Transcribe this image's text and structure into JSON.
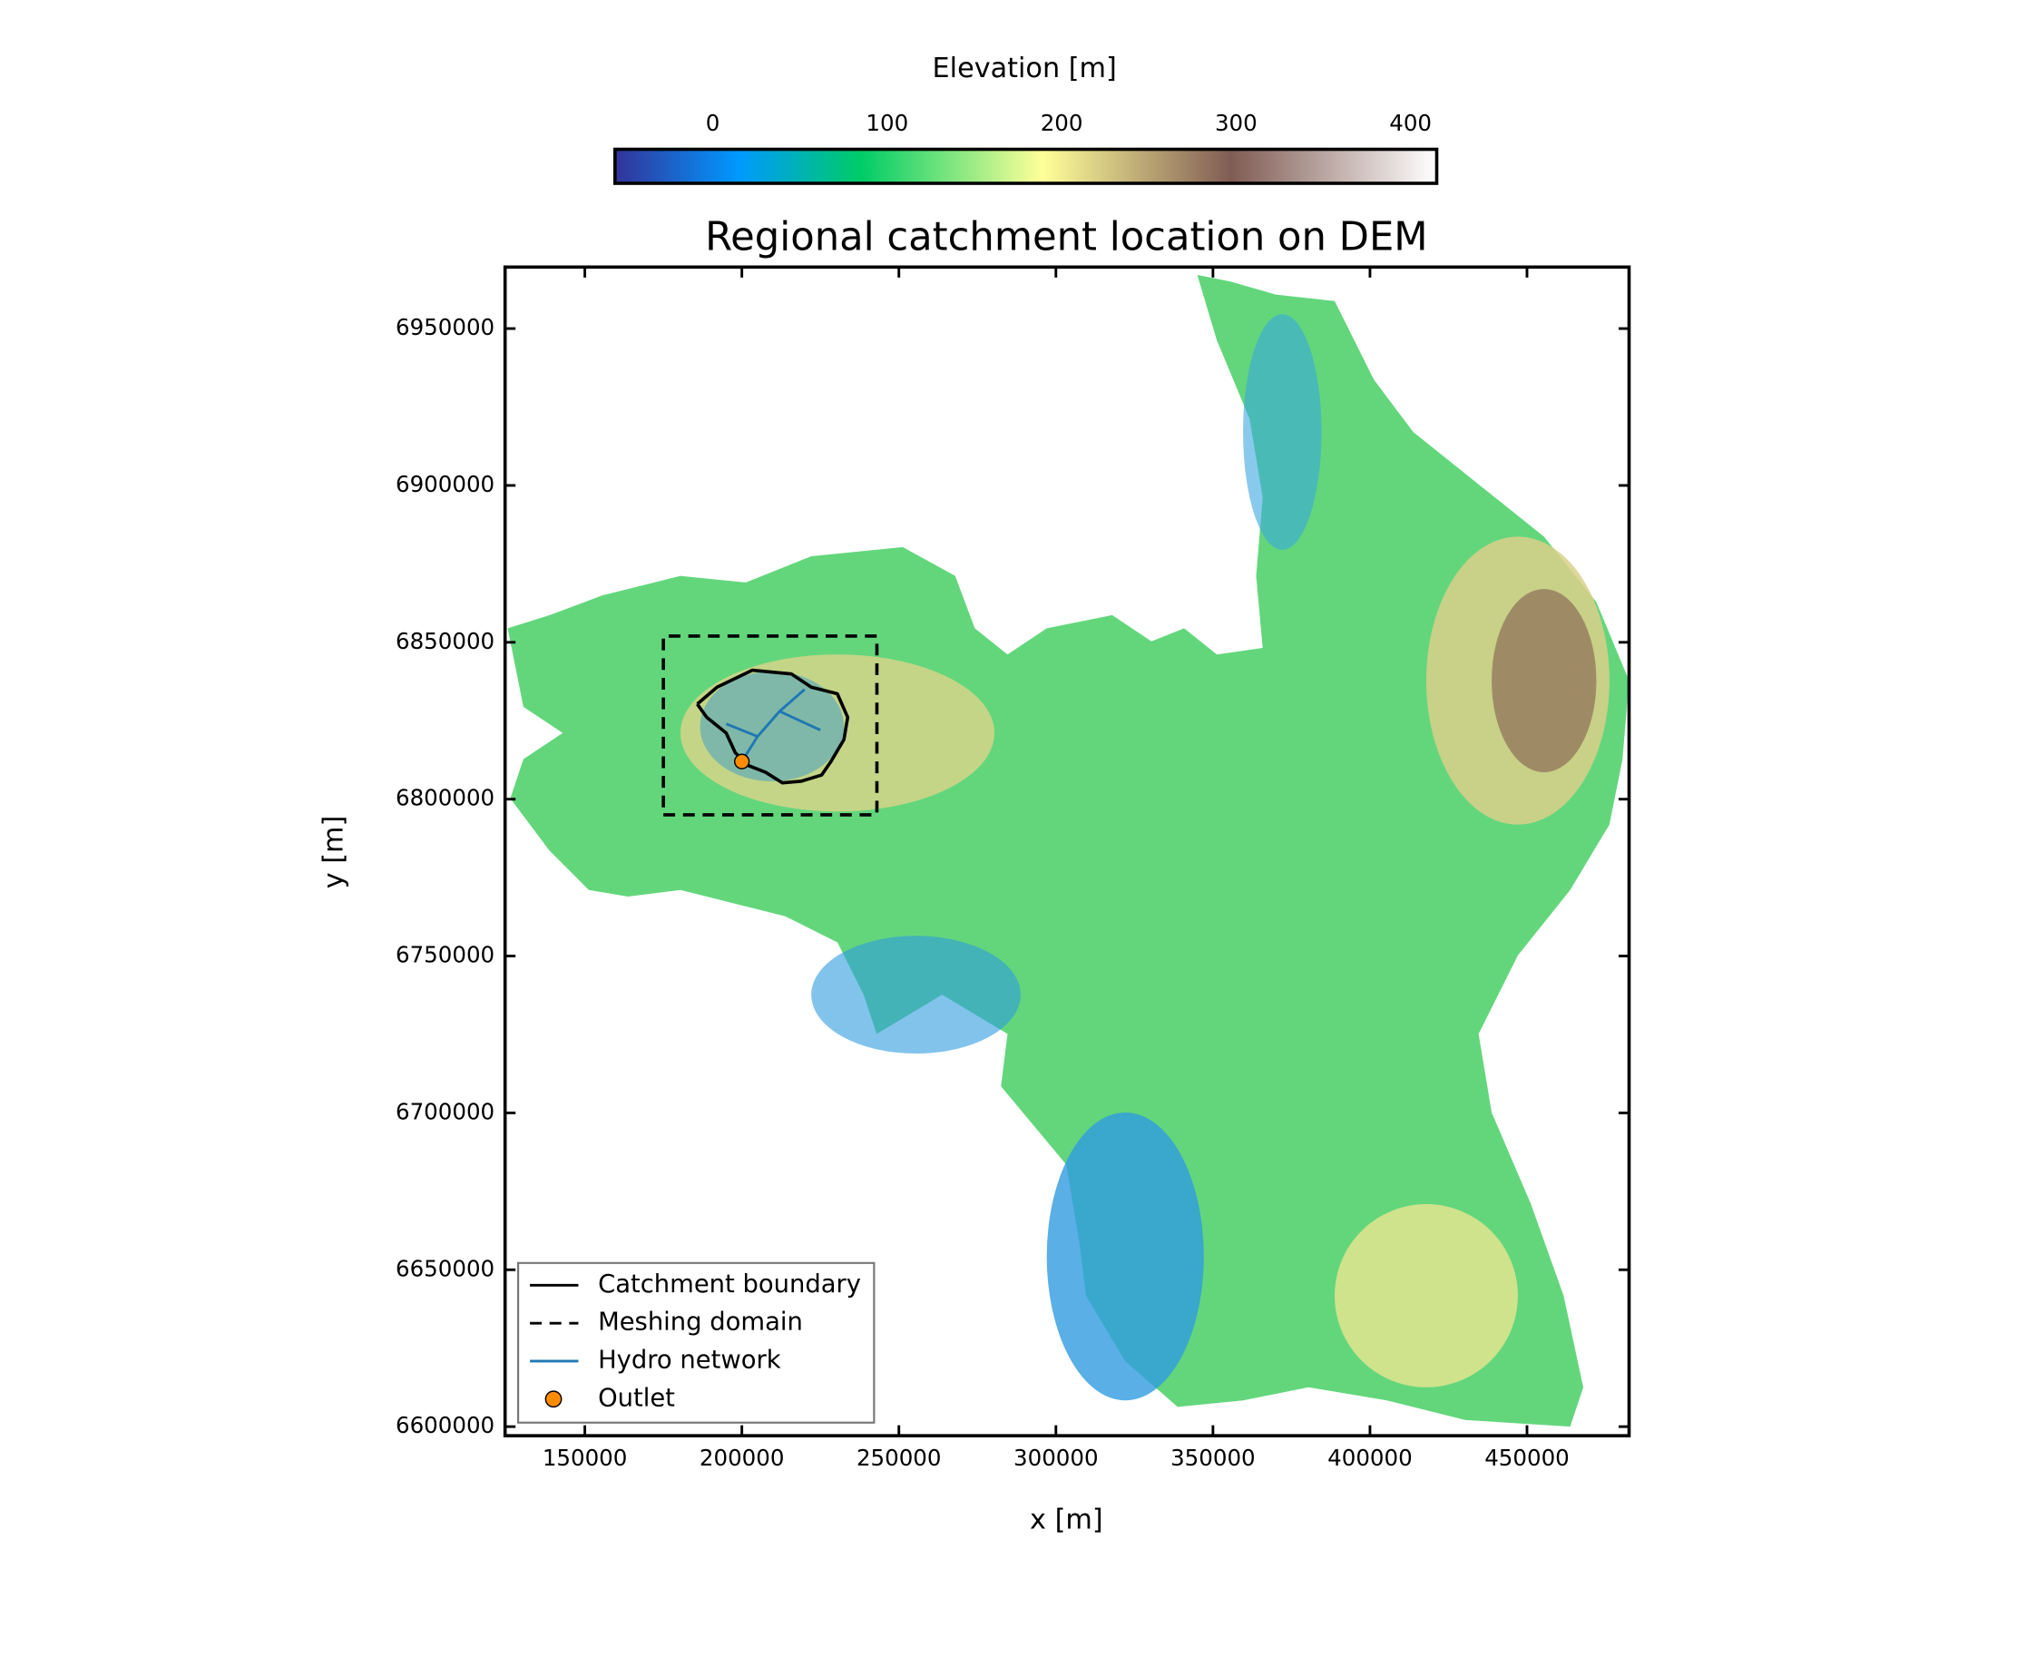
{
  "chart_data": {
    "type": "map",
    "title": "Regional catchment location on DEM",
    "xlabel": "x [m]",
    "ylabel": "y [m]",
    "xlim": [
      124600,
      482500
    ],
    "ylim": [
      6597100,
      6969600
    ],
    "xticks": [
      150000,
      200000,
      250000,
      300000,
      350000,
      400000,
      450000
    ],
    "yticks": [
      6600000,
      6650000,
      6700000,
      6750000,
      6800000,
      6850000,
      6900000,
      6950000
    ],
    "colorbar": {
      "label": "Elevation [m]",
      "lim": [
        -56,
        415
      ],
      "ticks": [
        0,
        100,
        200,
        300,
        400
      ]
    },
    "legend": "lower left",
    "series": [
      {
        "name": "Catchment boundary",
        "color": "#000000",
        "style": "solid",
        "x": [
          185800,
          192100,
          203300,
          215800,
          222100,
          230400,
          233700,
          232500,
          228300,
          225400,
          218800,
          212900,
          207500,
          202100,
          197900,
          195000,
          188800,
          185800
        ],
        "y": [
          6830300,
          6835700,
          6841100,
          6839900,
          6835700,
          6833600,
          6826100,
          6819000,
          6811900,
          6807700,
          6805700,
          6805200,
          6808600,
          6810700,
          6814800,
          6821100,
          6826100,
          6830300
        ]
      },
      {
        "name": "Meshing domain",
        "color": "#000000",
        "style": "dashed",
        "x": [
          175000,
          243000,
          243000,
          175000,
          175000
        ],
        "y": [
          6795000,
          6795000,
          6852000,
          6852000,
          6795000
        ]
      },
      {
        "name": "Hydro network",
        "color": "#1f77b4",
        "style": "solid",
        "x": [
          200000,
          205000,
          212000,
          220000,
          null,
          205000,
          195000,
          null,
          212000,
          225000
        ],
        "y": [
          6812000,
          6820000,
          6828000,
          6835000,
          null,
          6820000,
          6824000,
          null,
          6828000,
          6822000
        ]
      },
      {
        "name": "Outlet",
        "color": "#ff8c00",
        "marker": "circle",
        "x": [
          200000
        ],
        "y": [
          6812000
        ]
      }
    ]
  }
}
